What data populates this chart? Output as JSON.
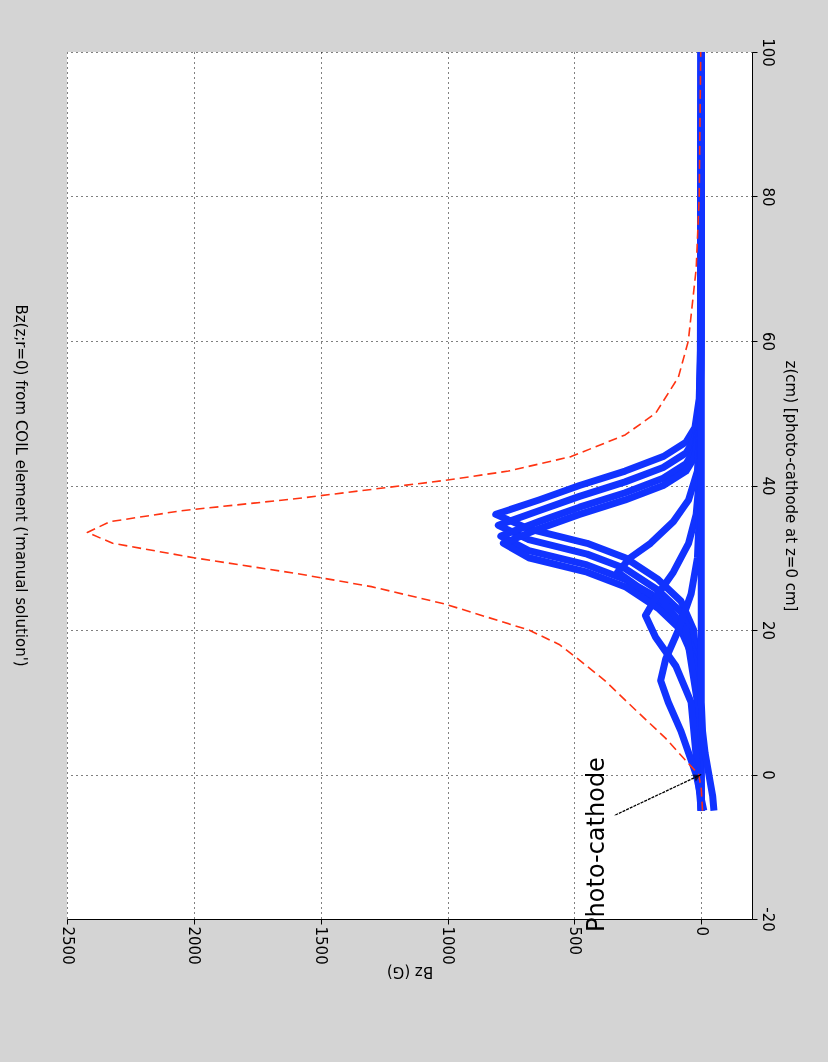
{
  "chart_data": {
    "type": "line",
    "title": "Bz(z;r=0) from COIL element ('manual solution')",
    "xlabel": "Bz (G)",
    "ylabel": "z(cm) [photo-cathode at z=0 cm]",
    "xlim": [
      2500,
      -200
    ],
    "xticks": [
      2500,
      2000,
      1500,
      1000,
      500,
      0
    ],
    "ylim": [
      -20,
      100
    ],
    "yticks": [
      -20,
      0,
      20,
      40,
      60,
      80,
      100
    ],
    "grid": true,
    "marker": "none",
    "series": [
      {
        "color": "#1133ff",
        "line_style": "solid",
        "values": [
          -5,
          10,
          20,
          24,
          27,
          30,
          32,
          34,
          36,
          38,
          40,
          42,
          44,
          46,
          48,
          52,
          60,
          100
        ],
        "x": [
          0,
          3,
          30,
          80,
          170,
          300,
          450,
          680,
          810,
          640,
          480,
          300,
          150,
          60,
          25,
          8,
          2,
          0
        ]
      },
      {
        "color": "#1133ff",
        "line_style": "solid",
        "values": [
          -5,
          8.5,
          18.5,
          22.5,
          25.5,
          28.5,
          30.5,
          32.5,
          34.5,
          36.5,
          38.5,
          40.5,
          42.5,
          44.5,
          46.5,
          50.5,
          58.5,
          100
        ],
        "x": [
          0,
          3,
          30,
          80,
          170,
          300,
          450,
          680,
          800,
          640,
          480,
          300,
          150,
          60,
          25,
          8,
          2,
          0
        ]
      },
      {
        "color": "#1133ff",
        "line_style": "solid",
        "values": [
          -5,
          7,
          17,
          21,
          24,
          27,
          29,
          31,
          33,
          35,
          37,
          39,
          41,
          43,
          45,
          49,
          57,
          100
        ],
        "x": [
          0,
          3,
          30,
          80,
          170,
          300,
          450,
          680,
          790,
          640,
          480,
          300,
          150,
          60,
          25,
          8,
          2,
          0
        ]
      },
      {
        "color": "#1133ff",
        "line_style": "solid",
        "values": [
          -5,
          6,
          16,
          20,
          23,
          26,
          28,
          30,
          32,
          34,
          36,
          38,
          40,
          42,
          44,
          48,
          56,
          100
        ],
        "x": [
          0,
          3,
          30,
          80,
          170,
          300,
          450,
          680,
          780,
          640,
          480,
          300,
          150,
          60,
          25,
          8,
          2,
          0
        ]
      },
      {
        "color": "#1133ff",
        "line_style": "solid",
        "values": [
          -5,
          10,
          20,
          24,
          26,
          28,
          30,
          32,
          35,
          38,
          42,
          50,
          100
        ],
        "x": [
          0,
          15,
          60,
          150,
          250,
          330,
          280,
          200,
          110,
          50,
          15,
          3,
          0
        ]
      },
      {
        "color": "#1133ff",
        "line_style": "solid",
        "values": [
          -5,
          10,
          15,
          19,
          22,
          25,
          28,
          32,
          36,
          42,
          100
        ],
        "x": [
          0,
          40,
          100,
          180,
          220,
          170,
          110,
          50,
          20,
          5,
          0
        ]
      },
      {
        "color": "#1133ff",
        "line_style": "solid",
        "values": [
          -5,
          0,
          6,
          10,
          13,
          16,
          20,
          25,
          30,
          40,
          100
        ],
        "x": [
          -10,
          20,
          80,
          130,
          160,
          140,
          90,
          40,
          15,
          3,
          0
        ]
      },
      {
        "color": "#1133ff",
        "line_style": "solid",
        "values": [
          -5,
          -3,
          0,
          3,
          6,
          10,
          100
        ],
        "x": [
          -50,
          -45,
          -30,
          -15,
          -5,
          0,
          0
        ]
      },
      {
        "color": "#ff3311",
        "line_style": "dashed",
        "values": [
          -5,
          -2,
          0,
          2,
          5,
          9,
          13,
          16,
          18,
          20,
          23.6,
          26,
          27.8,
          30,
          32,
          33.5,
          35,
          36.5,
          38.2,
          40.7,
          42,
          44,
          47,
          50,
          55,
          60,
          70,
          80,
          100
        ],
        "x": [
          -5,
          0,
          10,
          63,
          140,
          261,
          380,
          486,
          560,
          680,
          1011,
          1300,
          1592,
          2000,
          2320,
          2420,
          2330,
          2050,
          1592,
          1011,
          760,
          513,
          300,
          180,
          90,
          51,
          20,
          8,
          2
        ]
      }
    ],
    "annotations": [
      {
        "text": "Photo-cathode",
        "x": 0,
        "y": 0
      }
    ]
  }
}
